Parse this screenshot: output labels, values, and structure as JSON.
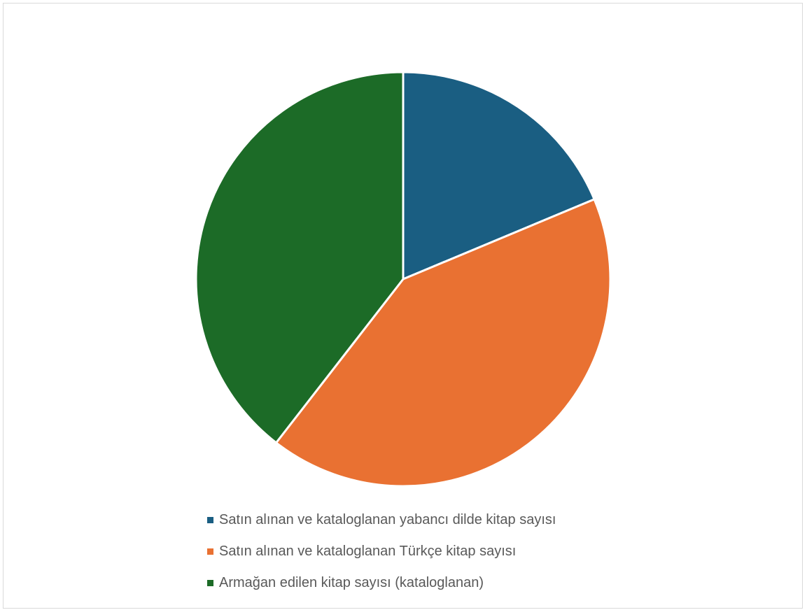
{
  "chart_data": {
    "type": "pie",
    "title": "",
    "categories": [
      "Satın alınan ve kataloglanan yabancı dilde kitap sayısı",
      "Satın alınan ve kataloglanan Türkçe kitap sayısı",
      "Armağan edilen kitap sayısı (kataloglanan)"
    ],
    "values": [
      18.7,
      41.8,
      39.5
    ],
    "colors": [
      "#1a5e82",
      "#e97132",
      "#1c6b27"
    ],
    "legend_position": "bottom",
    "start_angle": "12 o'clock",
    "direction": "clockwise"
  },
  "legend": {
    "items": [
      {
        "label": "Satın alınan ve kataloglanan yabancı dilde kitap sayısı",
        "color": "#1a5e82"
      },
      {
        "label": "Satın alınan ve kataloglanan Türkçe kitap sayısı",
        "color": "#e97132"
      },
      {
        "label": "Armağan edilen kitap sayısı (kataloglanan)",
        "color": "#1c6b27"
      }
    ]
  }
}
